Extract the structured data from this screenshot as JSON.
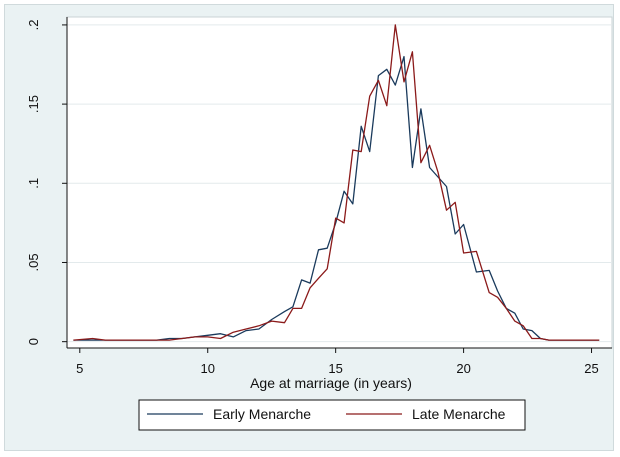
{
  "chart_data": {
    "type": "line",
    "title": "",
    "xlabel": "Age at marriage (in years)",
    "ylabel": "",
    "xlim": [
      4.5,
      25.8
    ],
    "ylim": [
      -0.004,
      0.205
    ],
    "xticks": [
      5,
      10,
      15,
      20,
      25
    ],
    "xtick_labels": [
      "5",
      "10",
      "15",
      "20",
      "25"
    ],
    "yticks": [
      0,
      0.05,
      0.1,
      0.15,
      0.2
    ],
    "ytick_labels": [
      "0",
      ".05",
      ".1",
      ".15",
      ".2"
    ],
    "grid": "horizontal",
    "legend_position": "bottom",
    "series": [
      {
        "name": "Early Menarche",
        "color": "#1a3a5c",
        "x": [
          4.75,
          5.5,
          6,
          6.5,
          7,
          7.5,
          8,
          8.5,
          9,
          9.5,
          10,
          10.5,
          11,
          11.5,
          12,
          12.5,
          13,
          13.33,
          13.67,
          14,
          14.33,
          14.67,
          15,
          15.33,
          15.67,
          16,
          16.33,
          16.67,
          17,
          17.33,
          17.67,
          18,
          18.33,
          18.67,
          19,
          19.33,
          19.67,
          20,
          20.5,
          21,
          21.33,
          21.67,
          22,
          22.33,
          22.67,
          23,
          23.33,
          23.67,
          24,
          24.5,
          25,
          25.3
        ],
        "y": [
          0.001,
          0.001,
          0.001,
          0.001,
          0.001,
          0.001,
          0.001,
          0.002,
          0.002,
          0.003,
          0.004,
          0.005,
          0.003,
          0.007,
          0.008,
          0.014,
          0.019,
          0.022,
          0.039,
          0.037,
          0.058,
          0.059,
          0.075,
          0.095,
          0.087,
          0.136,
          0.12,
          0.168,
          0.172,
          0.162,
          0.18,
          0.11,
          0.147,
          0.11,
          0.104,
          0.098,
          0.068,
          0.074,
          0.044,
          0.045,
          0.032,
          0.021,
          0.018,
          0.008,
          0.007,
          0.002,
          0.001,
          0.001,
          0.001,
          0.001,
          0.001,
          0.001
        ]
      },
      {
        "name": "Late Menarche",
        "color": "#8b1a1a",
        "x": [
          4.75,
          5.5,
          6,
          6.5,
          7,
          7.5,
          8,
          8.5,
          9,
          9.5,
          10,
          10.5,
          11,
          11.5,
          12,
          12.5,
          13,
          13.33,
          13.67,
          14,
          14.33,
          14.67,
          15,
          15.33,
          15.67,
          16,
          16.33,
          16.67,
          17,
          17.33,
          17.67,
          18,
          18.33,
          18.67,
          19,
          19.33,
          19.67,
          20,
          20.5,
          21,
          21.33,
          21.67,
          22,
          22.33,
          22.67,
          23,
          23.33,
          23.67,
          24,
          24.5,
          25,
          25.3
        ],
        "y": [
          0.001,
          0.002,
          0.001,
          0.001,
          0.001,
          0.001,
          0.001,
          0.001,
          0.002,
          0.003,
          0.003,
          0.002,
          0.006,
          0.008,
          0.01,
          0.013,
          0.012,
          0.021,
          0.021,
          0.034,
          0.04,
          0.046,
          0.078,
          0.075,
          0.121,
          0.12,
          0.155,
          0.165,
          0.149,
          0.2,
          0.164,
          0.183,
          0.113,
          0.124,
          0.107,
          0.083,
          0.088,
          0.056,
          0.057,
          0.031,
          0.028,
          0.021,
          0.013,
          0.01,
          0.002,
          0.002,
          0.001,
          0.001,
          0.001,
          0.001,
          0.001,
          0.001
        ]
      }
    ]
  }
}
